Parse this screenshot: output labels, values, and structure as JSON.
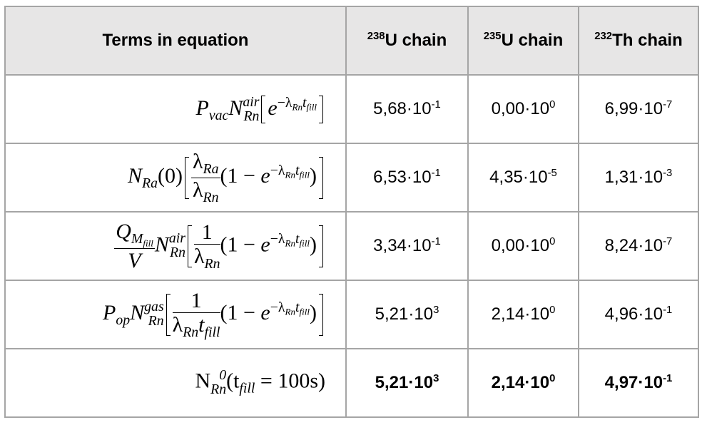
{
  "table": {
    "headers": [
      {
        "text": "Terms in equation"
      },
      {
        "sup": "238",
        "text": "U chain"
      },
      {
        "sup": "235",
        "text": "U chain"
      },
      {
        "sup": "232",
        "text": "Th chain"
      }
    ],
    "rows": [
      {
        "term": [
          "P",
          "vac",
          "N",
          "air",
          "Rn",
          "e",
          "−λ",
          "Rn",
          "t",
          "fill"
        ],
        "values": [
          {
            "mantissa": "5,68·10",
            "exp": "-1"
          },
          {
            "mantissa": "0,00·10",
            "exp": "0"
          },
          {
            "mantissa": "6,99·10",
            "exp": "-7"
          }
        ]
      },
      {
        "term": [
          "N",
          "Ra",
          "(0)",
          "λ",
          "Ra",
          "λ",
          "Rn",
          "(1 − ",
          "e",
          "−λ",
          "Rn",
          "t",
          "fill",
          ")"
        ],
        "values": [
          {
            "mantissa": "6,53·10",
            "exp": "-1"
          },
          {
            "mantissa": "4,35·10",
            "exp": "-5"
          },
          {
            "mantissa": "1,31·10",
            "exp": "-3"
          }
        ]
      },
      {
        "term": [
          "Q",
          "M",
          "fill",
          "V",
          "N",
          "air",
          "Rn",
          "1",
          "λ",
          "Rn",
          "(1 − ",
          "e",
          "−λ",
          "Rn",
          "t",
          "fill",
          ")"
        ],
        "values": [
          {
            "mantissa": "3,34·10",
            "exp": "-1"
          },
          {
            "mantissa": "0,00·10",
            "exp": "0"
          },
          {
            "mantissa": "8,24·10",
            "exp": "-7"
          }
        ]
      },
      {
        "term": [
          "P",
          "op",
          "N",
          "gas",
          "Rn",
          "1",
          "λ",
          "Rn",
          "t",
          "fill",
          "(1 − ",
          "e",
          "−λ",
          "Rn",
          "t",
          "fill",
          ")"
        ],
        "values": [
          {
            "mantissa": "5,21·10",
            "exp": "3"
          },
          {
            "mantissa": "2,14·10",
            "exp": "0"
          },
          {
            "mantissa": "4,96·10",
            "exp": "-1"
          }
        ]
      },
      {
        "term": [
          "N",
          "0",
          "Rn",
          "(t",
          "fill",
          " = 100s)"
        ],
        "values": [
          {
            "mantissa": "5,21·10",
            "exp": "3"
          },
          {
            "mantissa": "2,14·10",
            "exp": "0"
          },
          {
            "mantissa": "4,97·10",
            "exp": "-1"
          }
        ]
      }
    ]
  }
}
